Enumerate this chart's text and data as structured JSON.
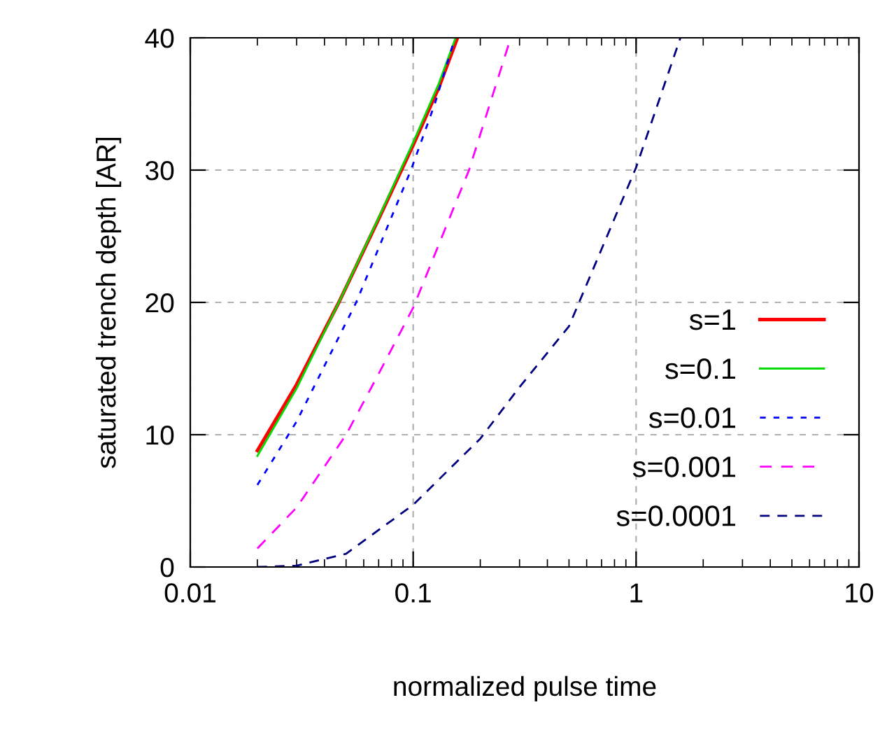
{
  "chart_data": {
    "type": "line",
    "xlabel": "normalized pulse time",
    "ylabel": "saturated trench depth [AR]",
    "log": "x",
    "xlim": [
      0.01,
      10
    ],
    "xticks": [
      0.01,
      0.1,
      1,
      10
    ],
    "ylim": [
      0,
      40
    ],
    "yticks": [
      0,
      10,
      20,
      30,
      40
    ],
    "grid": true,
    "legend": "bottom right",
    "marker": "none",
    "series": [
      {
        "name": "s=1",
        "color": "#ff0000",
        "line_style": "solid",
        "x": [
          0.02,
          0.03,
          0.0464,
          0.07,
          0.1,
          0.13,
          0.158
        ],
        "values": [
          8.8,
          13.8,
          20,
          26.3,
          31.9,
          36.2,
          40
        ]
      },
      {
        "name": "s=0.1",
        "color": "#00dd00",
        "line_style": "solid",
        "x": [
          0.02,
          0.03,
          0.0464,
          0.07,
          0.1,
          0.13,
          0.155
        ],
        "values": [
          8.4,
          13.5,
          20,
          26.4,
          32.1,
          36.5,
          40
        ]
      },
      {
        "name": "s=0.01",
        "color": "#0000ff",
        "line_style": "dashed",
        "x": [
          0.02,
          0.03,
          0.0555,
          0.0977,
          0.125,
          0.154
        ],
        "values": [
          6.2,
          11,
          20,
          30,
          35,
          40
        ]
      },
      {
        "name": "s=0.001",
        "color": "#ff00ff",
        "line_style": "dashed",
        "x": [
          0.02,
          0.03,
          0.05,
          0.07,
          0.1,
          0.178,
          0.274
        ],
        "values": [
          1.4,
          4.5,
          10,
          14.6,
          19.6,
          30,
          40
        ]
      },
      {
        "name": "s=0.0001",
        "color": "#000080",
        "line_style": "dashed",
        "x": [
          0.02,
          0.03,
          0.05,
          0.1,
          0.2,
          0.3,
          0.5,
          1,
          1.58
        ],
        "values": [
          0,
          0.1,
          1.0,
          4.7,
          9.7,
          13.6,
          18.2,
          30.2,
          40
        ]
      }
    ]
  }
}
